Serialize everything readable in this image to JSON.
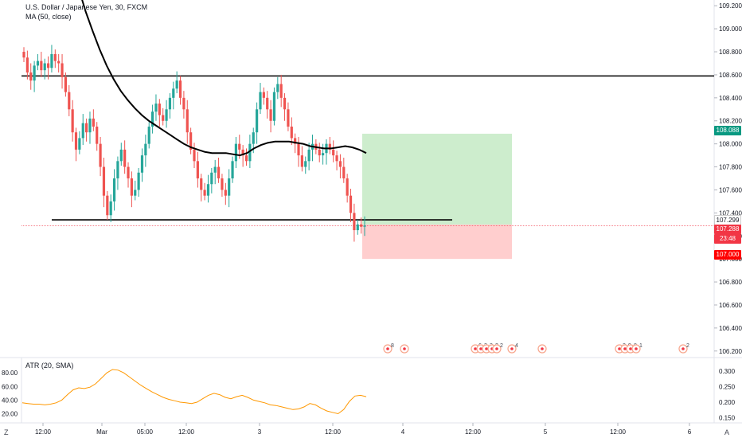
{
  "legend": {
    "symbol": "U.S. Dollar / Japanese Yen, 30, FXCM",
    "ma": "MA (50, close)",
    "atr": "ATR (20, SMA)"
  },
  "price_axis": {
    "ticks": [
      109.2,
      109.0,
      108.8,
      108.6,
      108.4,
      108.2,
      108.0,
      107.8,
      107.6,
      107.4,
      107.2,
      107.0,
      106.8,
      106.6,
      106.4,
      106.2
    ],
    "labels": [
      "109.200",
      "109.000",
      "108.800",
      "108.600",
      "108.400",
      "108.200",
      "108.000",
      "107.800",
      "107.600",
      "107.400",
      "107.200",
      "107.000",
      "106.800",
      "106.600",
      "106.400",
      "106.200"
    ],
    "tags": {
      "take_profit": {
        "label": "108.088",
        "value": 108.088,
        "color": "#089981"
      },
      "current_bid": {
        "label": "107.299",
        "value": 107.299,
        "color": "#ffffff"
      },
      "current_price": {
        "label": "107.288",
        "value": 107.288,
        "color": "#f23645"
      },
      "countdown": {
        "label": "23:48",
        "color": "#f23645"
      },
      "stop_loss": {
        "label": "107.000",
        "value": 107.0,
        "color": "#ff0000"
      }
    }
  },
  "atr_axis": {
    "left_labels": [
      "80.00",
      "60.00",
      "40.00",
      "20.00"
    ],
    "right_labels": [
      "0.300",
      "0.250",
      "0.200",
      "0.150"
    ]
  },
  "time_axis": {
    "labels": [
      "12:00",
      "Mar",
      "05:00",
      "12:00",
      "3",
      "12:00",
      "4",
      "12:00",
      "5",
      "12:00",
      "6"
    ],
    "corner_left": "Z",
    "corner_right": "A"
  },
  "levels": {
    "resistance": 108.59,
    "support": 107.34
  },
  "position": {
    "entry": 107.299,
    "target": 108.088,
    "stop": 107.0
  },
  "event_markers": [
    "8",
    "",
    "6",
    "2",
    "3",
    "2",
    "2",
    "4",
    "",
    "2",
    "9",
    "8",
    "1",
    "2"
  ],
  "chart_data": {
    "type": "candlestick",
    "title": "U.S. Dollar / Japanese Yen, 30, FXCM",
    "ylim": [
      106.15,
      109.25
    ],
    "series": [
      {
        "name": "MA (50, close)"
      },
      {
        "name": "ATR (20, SMA)"
      }
    ],
    "close": [
      108.75,
      108.62,
      108.55,
      108.68,
      108.72,
      108.64,
      108.7,
      108.66,
      108.78,
      108.72,
      108.7,
      108.58,
      108.45,
      108.3,
      108.1,
      107.95,
      108.05,
      108.18,
      108.1,
      108.22,
      108.15,
      108.0,
      107.8,
      107.55,
      107.38,
      107.5,
      107.7,
      107.85,
      107.95,
      107.8,
      107.7,
      107.55,
      107.6,
      107.75,
      107.9,
      108.0,
      108.15,
      108.28,
      108.35,
      108.25,
      108.2,
      108.3,
      108.4,
      108.48,
      108.55,
      108.4,
      108.3,
      108.1,
      107.95,
      107.85,
      107.7,
      107.6,
      107.55,
      107.65,
      107.75,
      107.8,
      107.7,
      107.6,
      107.55,
      107.7,
      107.85,
      108.0,
      107.95,
      107.9,
      107.85,
      108.0,
      108.1,
      108.3,
      108.45,
      108.4,
      108.3,
      108.2,
      108.45,
      108.52,
      108.4,
      108.3,
      108.15,
      108.05,
      108.0,
      107.9,
      107.8,
      107.85,
      107.95,
      108.0,
      107.95,
      107.9,
      107.92,
      108.0,
      107.95,
      107.9,
      107.85,
      107.8,
      107.7,
      107.55,
      107.4,
      107.25,
      107.3,
      107.28,
      107.29
    ],
    "ma": [
      109.55,
      109.35,
      109.15,
      108.98,
      108.82,
      108.68,
      108.56,
      108.46,
      108.38,
      108.31,
      108.25,
      108.2,
      108.16,
      108.12,
      108.08,
      108.04,
      108.0,
      107.97,
      107.95,
      107.93,
      107.92,
      107.92,
      107.92,
      107.91,
      107.9,
      107.92,
      107.96,
      107.99,
      108.01,
      108.02,
      108.02,
      108.02,
      108.01,
      108.0,
      107.98,
      107.97,
      107.96,
      107.96,
      107.97,
      107.98,
      107.97,
      107.95,
      107.92
    ],
    "atr": [
      36,
      35,
      34,
      34,
      33,
      34,
      36,
      40,
      48,
      55,
      58,
      57,
      59,
      64,
      72,
      80,
      85,
      84,
      80,
      74,
      68,
      62,
      57,
      52,
      48,
      44,
      41,
      39,
      37,
      36,
      35,
      37,
      42,
      47,
      50,
      48,
      44,
      42,
      45,
      47,
      44,
      40,
      38,
      36,
      33,
      32,
      30,
      28,
      26,
      27,
      30,
      35,
      33,
      28,
      24,
      22,
      20,
      26,
      38,
      46,
      47,
      45
    ]
  }
}
